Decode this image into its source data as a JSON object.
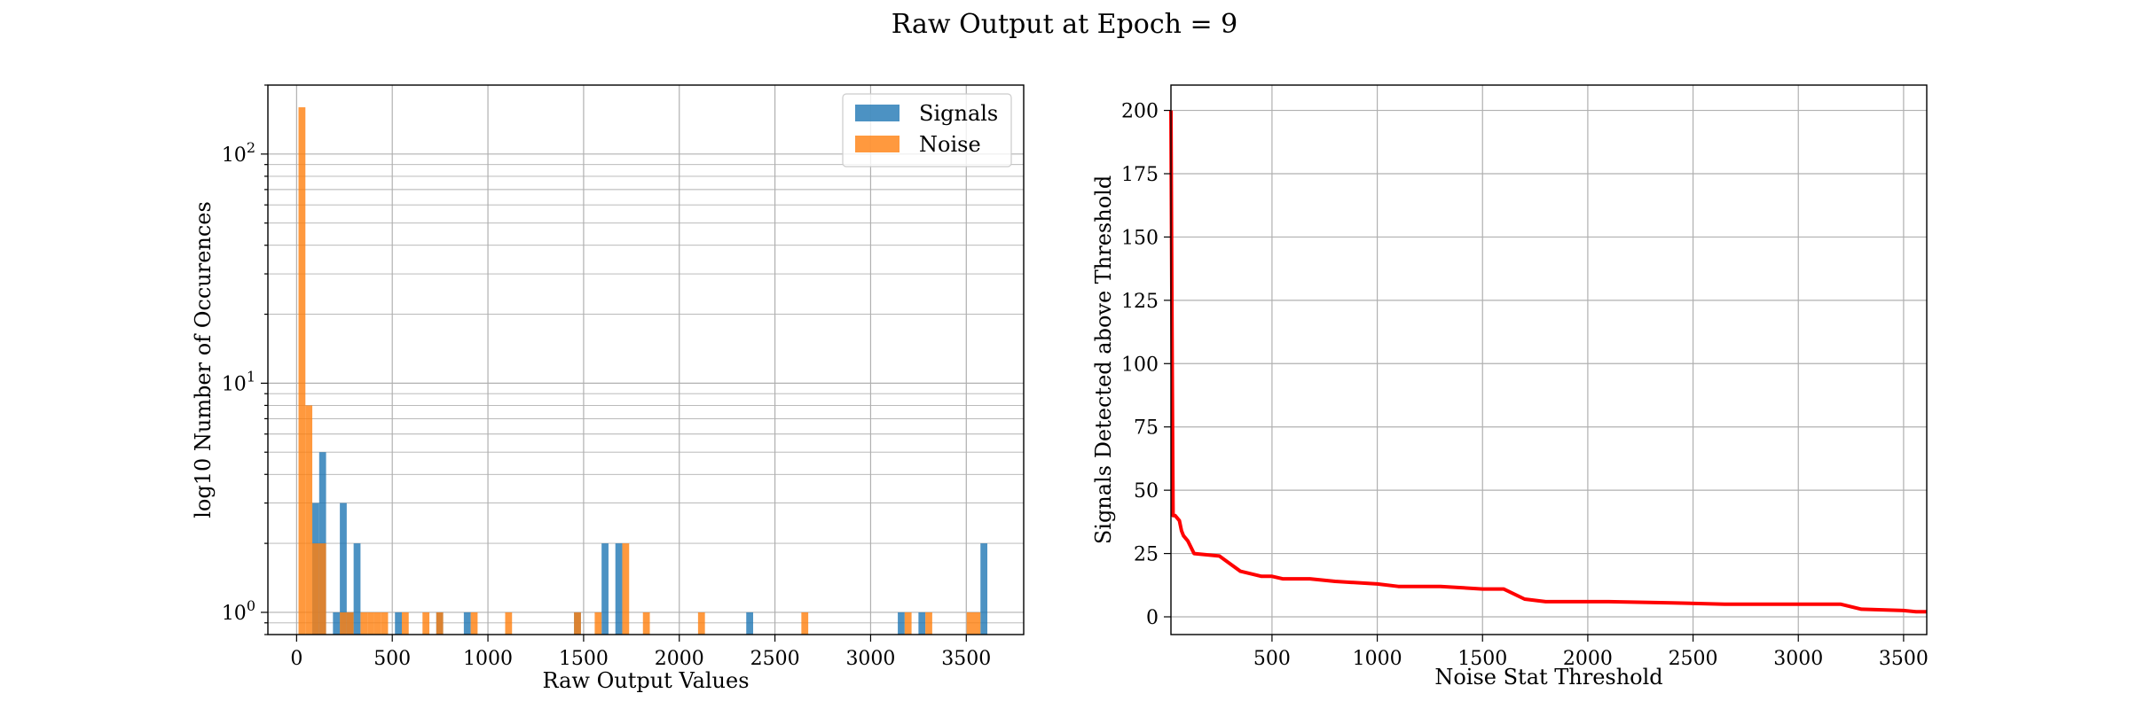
{
  "suptitle": "Raw Output at Epoch = 9",
  "colors": {
    "signals": "#1f77b4",
    "noise": "#ff7f0e",
    "curve": "#ff0000",
    "grid": "#b0b0b0"
  },
  "chart_data": [
    {
      "type": "bar",
      "subtype": "overlaid histogram (log y scale)",
      "title": "",
      "xlabel": "Raw Output Values",
      "ylabel": "log10 Number of Occurences",
      "xlim": [
        -150,
        3800
      ],
      "ylim": [
        0.8,
        200
      ],
      "yscale": "log",
      "grid": true,
      "legend_position": "top-right",
      "xticks": [
        0,
        500,
        1000,
        1500,
        2000,
        2500,
        3000,
        3500
      ],
      "xtick_labels": [
        "0",
        "500",
        "1000",
        "1500",
        "2000",
        "2500",
        "3000",
        "3500"
      ],
      "ytick_labels": [
        {
          "value": 1,
          "base": "10",
          "exp": "0"
        },
        {
          "value": 10,
          "base": "10",
          "exp": "1"
        },
        {
          "value": 100,
          "base": "10",
          "exp": "2"
        }
      ],
      "bin_width": 36,
      "series": [
        {
          "name": "Signals",
          "bins": [
            {
              "x": 100,
              "count": 3
            },
            {
              "x": 136,
              "count": 5
            },
            {
              "x": 208,
              "count": 1
            },
            {
              "x": 244,
              "count": 3
            },
            {
              "x": 280,
              "count": 1
            },
            {
              "x": 316,
              "count": 2
            },
            {
              "x": 532,
              "count": 1
            },
            {
              "x": 748,
              "count": 1
            },
            {
              "x": 892,
              "count": 1
            },
            {
              "x": 1468,
              "count": 1
            },
            {
              "x": 1612,
              "count": 2
            },
            {
              "x": 1684,
              "count": 2
            },
            {
              "x": 2368,
              "count": 1
            },
            {
              "x": 3160,
              "count": 1
            },
            {
              "x": 3268,
              "count": 1
            },
            {
              "x": 3592,
              "count": 2
            }
          ]
        },
        {
          "name": "Noise",
          "bins": [
            {
              "x": 28,
              "count": 160
            },
            {
              "x": 64,
              "count": 8
            },
            {
              "x": 100,
              "count": 2
            },
            {
              "x": 136,
              "count": 2
            },
            {
              "x": 244,
              "count": 1
            },
            {
              "x": 280,
              "count": 1
            },
            {
              "x": 352,
              "count": 1
            },
            {
              "x": 388,
              "count": 1
            },
            {
              "x": 424,
              "count": 1
            },
            {
              "x": 460,
              "count": 1
            },
            {
              "x": 568,
              "count": 1
            },
            {
              "x": 676,
              "count": 1
            },
            {
              "x": 748,
              "count": 1
            },
            {
              "x": 928,
              "count": 1
            },
            {
              "x": 1108,
              "count": 1
            },
            {
              "x": 1468,
              "count": 1
            },
            {
              "x": 1576,
              "count": 1
            },
            {
              "x": 1720,
              "count": 2
            },
            {
              "x": 1828,
              "count": 1
            },
            {
              "x": 2116,
              "count": 1
            },
            {
              "x": 2656,
              "count": 1
            },
            {
              "x": 3196,
              "count": 1
            },
            {
              "x": 3304,
              "count": 1
            },
            {
              "x": 3520,
              "count": 1
            },
            {
              "x": 3556,
              "count": 1
            }
          ]
        }
      ]
    },
    {
      "type": "line",
      "title": "",
      "xlabel": "Noise Stat Threshold",
      "ylabel": "Signals Detected above Threshold",
      "xlim": [
        20,
        3610
      ],
      "ylim": [
        -7,
        210
      ],
      "grid": true,
      "xticks": [
        500,
        1000,
        1500,
        2000,
        2500,
        3000,
        3500
      ],
      "xtick_labels": [
        "500",
        "1000",
        "1500",
        "2000",
        "2500",
        "3000",
        "3500"
      ],
      "yticks": [
        0,
        25,
        50,
        75,
        100,
        125,
        150,
        175,
        200
      ],
      "ytick_labels": [
        "0",
        "25",
        "50",
        "75",
        "100",
        "125",
        "150",
        "175",
        "200"
      ],
      "series": [
        {
          "x": [
            20,
            23,
            26,
            30,
            40,
            60,
            70,
            80,
            100,
            130,
            250,
            350,
            450,
            500,
            550,
            680,
            800,
            1000,
            1100,
            1300,
            1500,
            1600,
            1700,
            1800,
            2100,
            2400,
            2650,
            3000,
            3200,
            3300,
            3500,
            3560,
            3610
          ],
          "y": [
            200,
            150,
            100,
            40,
            40,
            38,
            34,
            32,
            30,
            25,
            24,
            18,
            16,
            16,
            15,
            15,
            14,
            13,
            12,
            12,
            11,
            11,
            7,
            6,
            6,
            5.5,
            5,
            5,
            5,
            3,
            2.5,
            2,
            2
          ]
        }
      ]
    }
  ]
}
